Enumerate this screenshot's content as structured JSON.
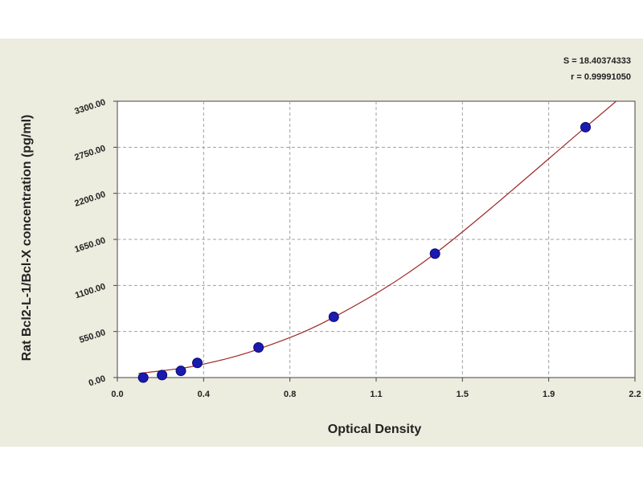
{
  "chart_data": {
    "type": "scatter",
    "xlabel": "Optical Density",
    "ylabel": "Rat Bcl2-L-1/Bcl-X concentration (pg/ml)",
    "xlim": [
      0,
      2.2
    ],
    "ylim": [
      0,
      3300
    ],
    "x_ticks": [
      "0.0",
      "0.4",
      "0.8",
      "1.1",
      "1.5",
      "1.9",
      "2.2"
    ],
    "y_ticks": [
      "0.00",
      "550.00",
      "1100.00",
      "1650.00",
      "2200.00",
      "2750.00",
      "3300.00"
    ],
    "grid": true,
    "points": [
      {
        "x": 0.11,
        "y": 0
      },
      {
        "x": 0.19,
        "y": 30
      },
      {
        "x": 0.27,
        "y": 80
      },
      {
        "x": 0.34,
        "y": 175
      },
      {
        "x": 0.6,
        "y": 360
      },
      {
        "x": 0.92,
        "y": 725
      },
      {
        "x": 1.35,
        "y": 1480
      },
      {
        "x": 1.99,
        "y": 2990
      }
    ],
    "curve": [
      {
        "x": 0.09,
        "y": 50
      },
      {
        "x": 0.2,
        "y": 85
      },
      {
        "x": 0.35,
        "y": 150
      },
      {
        "x": 0.6,
        "y": 340
      },
      {
        "x": 0.92,
        "y": 720
      },
      {
        "x": 1.35,
        "y": 1480
      },
      {
        "x": 1.99,
        "y": 2990
      },
      {
        "x": 2.12,
        "y": 3300
      }
    ],
    "stats": {
      "s": "S = 18.40374333",
      "r": "r = 0.99991050"
    },
    "colors": {
      "point": "#1a1ab0",
      "point_edge": "#0a0a70",
      "curve": "#a02828",
      "grid": "#a0a0a0",
      "plot_bg": "#ffffff",
      "figure_bg": "#ececdf"
    }
  }
}
